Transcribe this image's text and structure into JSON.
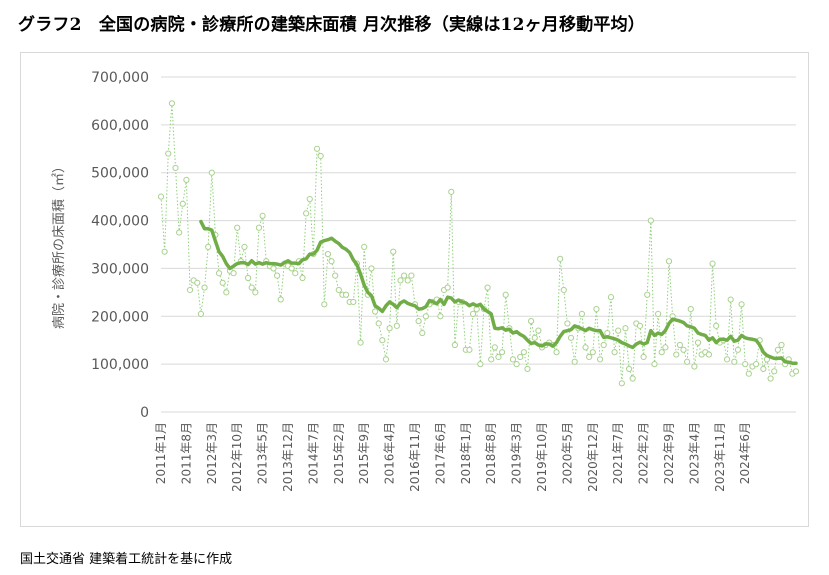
{
  "title": "グラフ2　全国の病院・診療所の建築床面積 月次推移（実線は12ヶ月移動平均）",
  "source": "国土交通省 建築着工統計を基に作成",
  "chart_data": {
    "type": "line",
    "title": "グラフ2　全国の病院・診療所の建築床面積 月次推移（実線は12ヶ月移動平均）",
    "xlabel": "",
    "ylabel": "病院・診療所の床面積（㎡）",
    "ylim": [
      0,
      700000
    ],
    "yticks": [
      0,
      100000,
      200000,
      300000,
      400000,
      500000,
      600000,
      700000
    ],
    "ytick_labels": [
      "0",
      "100,000",
      "200,000",
      "300,000",
      "400,000",
      "500,000",
      "600,000",
      "700,000"
    ],
    "x_start": "2011-01",
    "x_end": "2024-07",
    "xtick_labels": [
      "2011年1月",
      "2011年8月",
      "2012年3月",
      "2012年10月",
      "2013年5月",
      "2013年12月",
      "2014年7月",
      "2015年2月",
      "2015年9月",
      "2016年4月",
      "2016年11月",
      "2017年6月",
      "2018年1月",
      "2018年8月",
      "2019年3月",
      "2019年10月",
      "2020年5月",
      "2020年12月",
      "2021年7月",
      "2022年2月",
      "2022年9月",
      "2023年4月",
      "2023年11月",
      "2024年6月"
    ],
    "grid": true,
    "colors": {
      "monthly": "#8fd17a",
      "monthly_marker": "#a9d18e",
      "moving_average": "#70ad47",
      "grid": "#d9d9d9"
    },
    "series": [
      {
        "name": "月次",
        "style": "dotted-line-with-circle-markers",
        "values": [
          450000,
          335000,
          540000,
          645000,
          510000,
          375000,
          435000,
          485000,
          255000,
          275000,
          270000,
          205000,
          260000,
          345000,
          500000,
          370000,
          290000,
          270000,
          250000,
          295000,
          290000,
          385000,
          315000,
          345000,
          280000,
          260000,
          250000,
          385000,
          410000,
          315000,
          305000,
          300000,
          285000,
          235000,
          310000,
          305000,
          300000,
          290000,
          315000,
          280000,
          415000,
          445000,
          330000,
          550000,
          535000,
          225000,
          330000,
          315000,
          285000,
          255000,
          245000,
          245000,
          230000,
          230000,
          310000,
          145000,
          345000,
          245000,
          300000,
          210000,
          185000,
          150000,
          110000,
          175000,
          335000,
          180000,
          275000,
          285000,
          275000,
          285000,
          225000,
          190000,
          165000,
          200000,
          225000,
          230000,
          235000,
          200000,
          255000,
          260000,
          460000,
          140000,
          230000,
          230000,
          130000,
          130000,
          205000,
          215000,
          100000,
          215000,
          260000,
          110000,
          135000,
          115000,
          125000,
          245000,
          175000,
          110000,
          100000,
          115000,
          125000,
          90000,
          190000,
          155000,
          170000,
          135000,
          140000,
          145000,
          140000,
          125000,
          320000,
          255000,
          185000,
          155000,
          105000,
          175000,
          205000,
          135000,
          115000,
          125000,
          215000,
          110000,
          140000,
          165000,
          240000,
          125000,
          170000,
          60000,
          175000,
          90000,
          70000,
          185000,
          180000,
          115000,
          245000,
          400000,
          100000,
          205000,
          125000,
          135000,
          315000,
          200000,
          120000,
          140000,
          130000,
          105000,
          215000,
          95000,
          145000,
          120000,
          125000,
          120000,
          310000,
          180000,
          145000,
          150000,
          110000,
          235000,
          105000,
          130000,
          225000,
          100000,
          80000,
          95000,
          100000,
          150000,
          90000,
          110000,
          70000,
          85000,
          130000,
          140000,
          100000,
          110000,
          80000,
          85000
        ]
      },
      {
        "name": "12ヶ月移動平均",
        "style": "solid-thick-line",
        "values": [
          null,
          null,
          null,
          null,
          null,
          null,
          null,
          null,
          null,
          null,
          null,
          398000,
          383000,
          383000,
          380000,
          357000,
          335000,
          325000,
          310000,
          300000,
          305000,
          310000,
          312000,
          312000,
          308000,
          316000,
          309000,
          312000,
          309000,
          312000,
          310000,
          310000,
          309000,
          307000,
          312000,
          316000,
          311000,
          311000,
          310000,
          318000,
          320000,
          330000,
          330000,
          338000,
          355000,
          358000,
          360000,
          363000,
          357000,
          352000,
          344000,
          340000,
          333000,
          318000,
          308000,
          288000,
          265000,
          250000,
          243000,
          222000,
          217000,
          210000,
          222000,
          230000,
          225000,
          218000,
          228000,
          232000,
          227000,
          224000,
          222000,
          215000,
          216000,
          220000,
          233000,
          230000,
          226000,
          235000,
          225000,
          240000,
          238000,
          230000,
          234000,
          230000,
          228000,
          222000,
          226000,
          222000,
          225000,
          215000,
          210000,
          205000,
          175000,
          174000,
          176000,
          171000,
          173000,
          165000,
          168000,
          162000,
          158000,
          150000,
          143000,
          145000,
          140000,
          138000,
          142000,
          142000,
          138000,
          145000,
          158000,
          168000,
          170000,
          172000,
          180000,
          177000,
          174000,
          170000,
          175000,
          172000,
          170000,
          170000,
          156000,
          157000,
          155000,
          153000,
          150000,
          145000,
          142000,
          138000,
          135000,
          142000,
          146000,
          142000,
          145000,
          170000,
          160000,
          165000,
          162000,
          170000,
          185000,
          194000,
          192000,
          190000,
          187000,
          180000,
          178000,
          175000,
          165000,
          162000,
          160000,
          150000,
          155000,
          145000,
          152000,
          152000,
          150000,
          158000,
          148000,
          150000,
          160000,
          155000,
          153000,
          152000,
          150000,
          140000,
          125000,
          118000,
          115000,
          112000,
          112000,
          113000,
          105000,
          104000,
          102000,
          102000
        ]
      }
    ]
  }
}
